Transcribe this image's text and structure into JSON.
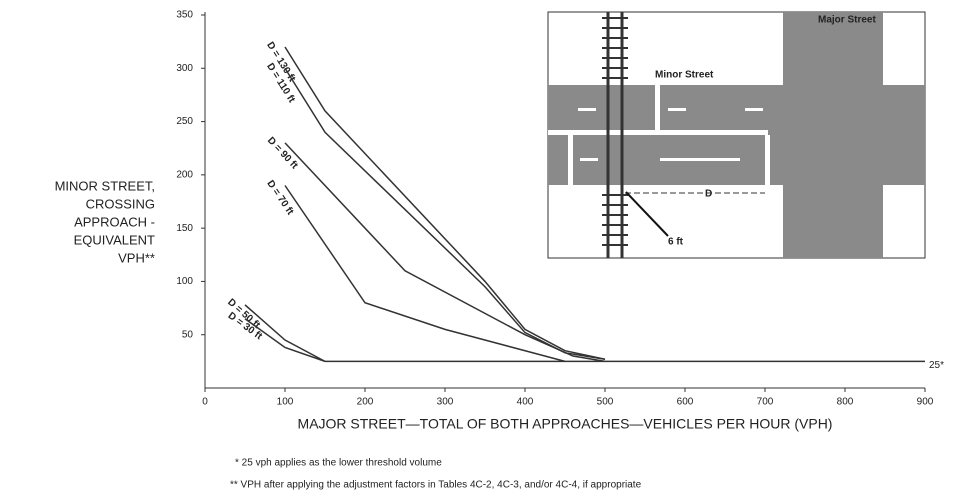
{
  "chart_data": {
    "type": "line",
    "ylabel": [
      "MINOR STREET,",
      "CROSSING",
      "APPROACH -",
      "EQUIVALENT",
      "VPH**"
    ],
    "xlabel": "MAJOR STREET—TOTAL OF BOTH APPROACHES—VEHICLES PER HOUR (VPH)",
    "footnotes": [
      "* 25 vph applies as the lower threshold volume",
      "** VPH after applying the adjustment factors in Tables 4C-2, 4C-3, and/or 4C-4, if appropriate"
    ],
    "inset": {
      "major_street": "Major Street",
      "minor_street": "Minor Street",
      "distance": "D",
      "offset": "6 ft"
    },
    "xlim": [
      0,
      900
    ],
    "xticks": [
      0,
      100,
      200,
      300,
      400,
      500,
      600,
      700,
      800,
      900
    ],
    "ylim": [
      0,
      350
    ],
    "yticks": [
      50,
      100,
      150,
      200,
      250,
      300,
      350
    ],
    "grid": false,
    "series": [
      {
        "name": "D = 130 ft",
        "color": "#333333",
        "x": [
          100,
          150,
          350,
          400,
          450,
          500
        ],
        "values": [
          320,
          260,
          100,
          55,
          35,
          27
        ]
      },
      {
        "name": "D = 110 ft",
        "color": "#333333",
        "x": [
          100,
          150,
          350,
          400,
          450,
          500
        ],
        "values": [
          300,
          240,
          95,
          52,
          33,
          27
        ]
      },
      {
        "name": "D = 90 ft",
        "color": "#333333",
        "x": [
          100,
          250,
          400,
          460,
          500
        ],
        "values": [
          230,
          110,
          50,
          30,
          25
        ]
      },
      {
        "name": "D = 70 ft",
        "color": "#333333",
        "x": [
          100,
          200,
          300,
          450
        ],
        "values": [
          190,
          80,
          55,
          25
        ]
      },
      {
        "name": "D = 50 ft",
        "color": "#333333",
        "x": [
          50,
          100,
          150
        ],
        "values": [
          78,
          45,
          25
        ]
      },
      {
        "name": "D = 30 ft",
        "color": "#333333",
        "x": [
          50,
          100,
          150
        ],
        "values": [
          65,
          38,
          25
        ]
      },
      {
        "name": "25*",
        "color": "#333333",
        "x": [
          150,
          900
        ],
        "values": [
          25,
          25
        ]
      }
    ]
  }
}
